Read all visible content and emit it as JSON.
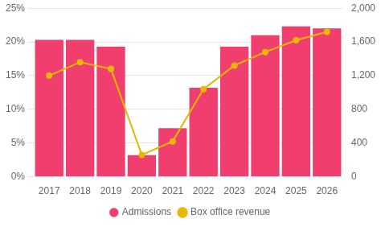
{
  "chart_data": {
    "type": "bar",
    "categories": [
      "2017",
      "2018",
      "2019",
      "2020",
      "2021",
      "2022",
      "2023",
      "2024",
      "2025",
      "2026"
    ],
    "series": [
      {
        "name": "Admissions",
        "type": "bar",
        "color": "#f03e6e",
        "axis": "y",
        "values": [
          20.3,
          20.3,
          19.3,
          3.2,
          7.2,
          13.2,
          19.3,
          21.0,
          22.3,
          22.0
        ]
      },
      {
        "name": "Box office revenue",
        "type": "line",
        "color": "#e8b800",
        "axis": "y2",
        "marker": "circle",
        "values": [
          1200,
          1360,
          1280,
          260,
          420,
          1040,
          1320,
          1480,
          1620,
          1720
        ]
      }
    ],
    "ylim": [
      0,
      25
    ],
    "yticks": [
      {
        "value": 0,
        "label": "0%"
      },
      {
        "value": 5,
        "label": "5%"
      },
      {
        "value": 10,
        "label": "10%"
      },
      {
        "value": 15,
        "label": "15%"
      },
      {
        "value": 20,
        "label": "20%"
      },
      {
        "value": 25,
        "label": "25%"
      }
    ],
    "y2lim": [
      0,
      2000
    ],
    "y2ticks": [
      0,
      400,
      800,
      {
        "value": 1200,
        "label": "1,200"
      },
      {
        "value": 1600,
        "label": "1,600"
      },
      {
        "value": 2000,
        "label": "2,000"
      }
    ],
    "grid": true,
    "legend": "bottom"
  }
}
